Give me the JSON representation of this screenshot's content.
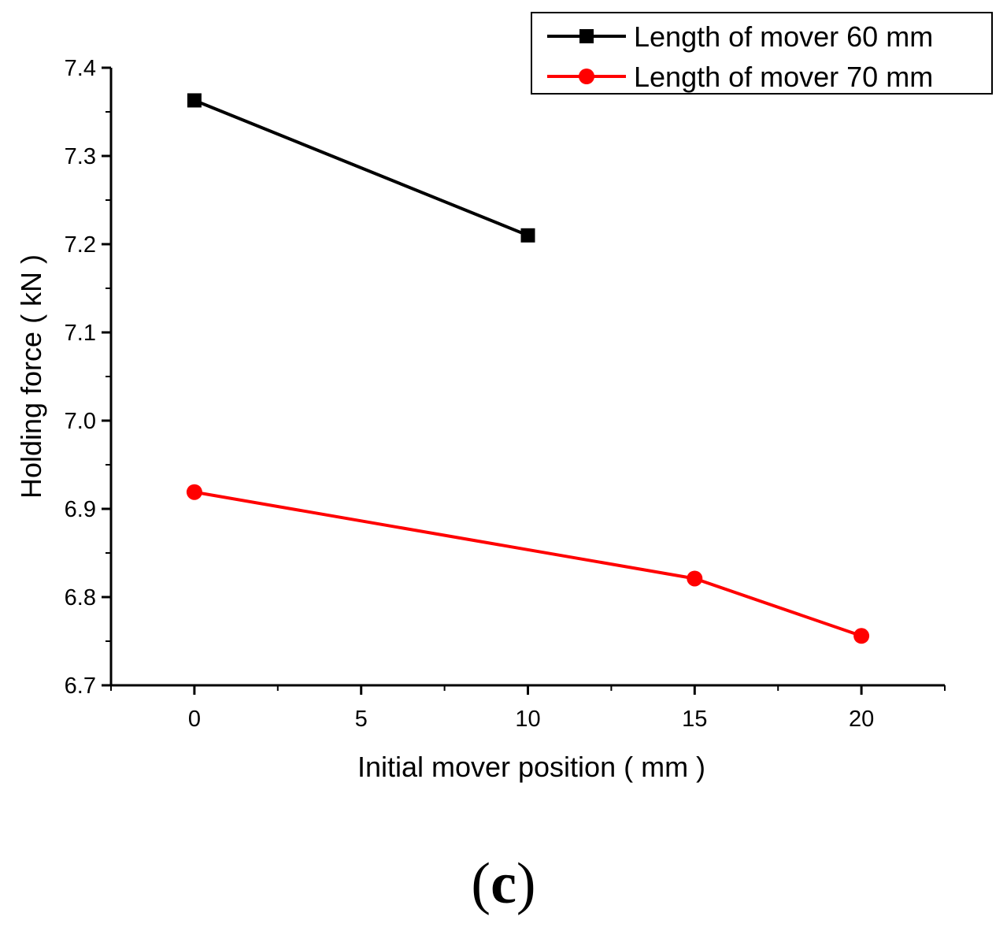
{
  "chart_data": {
    "type": "line",
    "title": "",
    "xlabel": "Initial mover position ( mm )",
    "ylabel": "Holding force ( kN )",
    "xlim": [
      -2.5,
      22.5
    ],
    "ylim": [
      6.7,
      7.4
    ],
    "xticks": [
      0,
      5,
      10,
      15,
      20
    ],
    "yticks": [
      6.7,
      6.8,
      6.9,
      7.0,
      7.1,
      7.2,
      7.3,
      7.4
    ],
    "ytick_labels": [
      "6.7",
      "6.8",
      "6.9",
      "7.0",
      "7.1",
      "7.2",
      "7.3",
      "7.4"
    ],
    "legend_position": "top-right",
    "series": [
      {
        "name": "Length of mover 60 mm",
        "color": "#000000",
        "marker": "square",
        "x": [
          0,
          10
        ],
        "y": [
          7.363,
          7.21
        ]
      },
      {
        "name": "Length of mover 70 mm",
        "color": "#ff0000",
        "marker": "circle",
        "x": [
          0,
          15,
          20
        ],
        "y": [
          6.919,
          6.821,
          6.756
        ]
      }
    ]
  },
  "panel_label": {
    "open": "(",
    "letter": "c",
    "close": ")"
  }
}
